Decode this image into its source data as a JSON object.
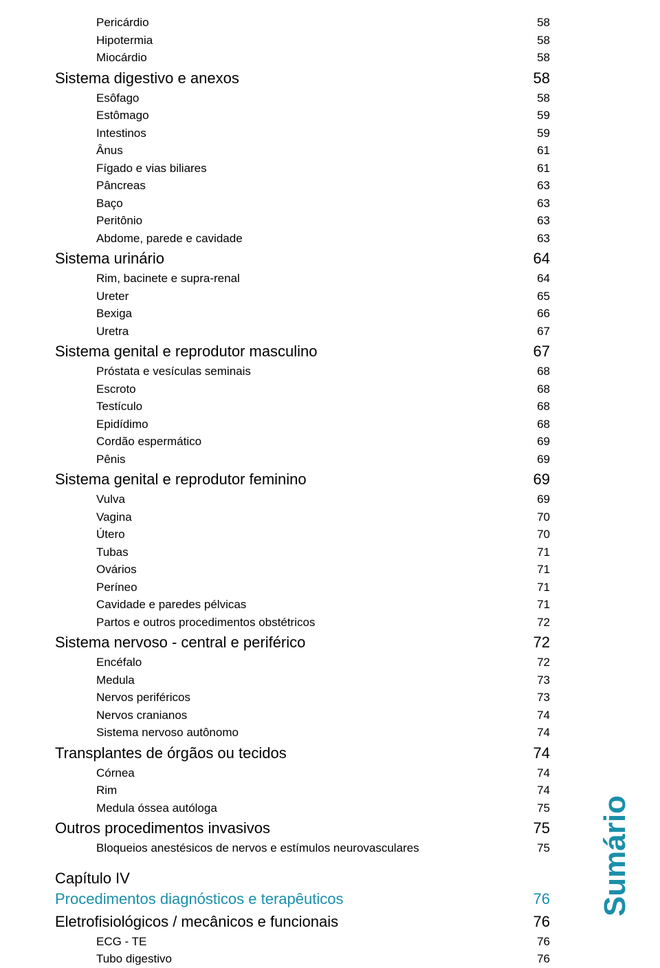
{
  "colors": {
    "text": "#000000",
    "accent": "#1a8faa",
    "background": "#ffffff"
  },
  "typography": {
    "section_fontsize": 22,
    "item_fontsize": 17,
    "side_fontsize": 44,
    "side_weight": 700
  },
  "side_label": "Sumário",
  "entries": [
    {
      "title": "Pericárdio",
      "page": "58",
      "level": 2,
      "type": "item"
    },
    {
      "title": "Hipotermia",
      "page": "58",
      "level": 2,
      "type": "item"
    },
    {
      "title": "Miocárdio",
      "page": "58",
      "level": 2,
      "type": "item"
    },
    {
      "title": "Sistema digestivo e anexos",
      "page": "58",
      "level": 1,
      "type": "section"
    },
    {
      "title": "Esôfago",
      "page": "58",
      "level": 2,
      "type": "item"
    },
    {
      "title": "Estômago",
      "page": "59",
      "level": 2,
      "type": "item"
    },
    {
      "title": "Intestinos",
      "page": "59",
      "level": 2,
      "type": "item"
    },
    {
      "title": "Ânus",
      "page": "61",
      "level": 2,
      "type": "item"
    },
    {
      "title": "Fígado e vias biliares",
      "page": "61",
      "level": 2,
      "type": "item"
    },
    {
      "title": "Pâncreas",
      "page": "63",
      "level": 2,
      "type": "item"
    },
    {
      "title": "Baço",
      "page": "63",
      "level": 2,
      "type": "item"
    },
    {
      "title": "Peritônio",
      "page": "63",
      "level": 2,
      "type": "item"
    },
    {
      "title": "Abdome, parede e cavidade",
      "page": "63",
      "level": 2,
      "type": "item"
    },
    {
      "title": "Sistema urinário",
      "page": "64",
      "level": 1,
      "type": "section"
    },
    {
      "title": "Rim, bacinete e supra-renal",
      "page": "64",
      "level": 2,
      "type": "item"
    },
    {
      "title": "Ureter",
      "page": "65",
      "level": 2,
      "type": "item"
    },
    {
      "title": "Bexiga",
      "page": "66",
      "level": 2,
      "type": "item"
    },
    {
      "title": "Uretra",
      "page": "67",
      "level": 2,
      "type": "item"
    },
    {
      "title": "Sistema genital e reprodutor masculino",
      "page": "67",
      "level": 1,
      "type": "section"
    },
    {
      "title": "Próstata e vesículas seminais",
      "page": "68",
      "level": 2,
      "type": "item"
    },
    {
      "title": "Escroto",
      "page": "68",
      "level": 2,
      "type": "item"
    },
    {
      "title": "Testículo",
      "page": "68",
      "level": 2,
      "type": "item"
    },
    {
      "title": "Epidídimo",
      "page": "68",
      "level": 2,
      "type": "item"
    },
    {
      "title": "Cordão espermático",
      "page": "69",
      "level": 2,
      "type": "item"
    },
    {
      "title": "Pênis",
      "page": "69",
      "level": 2,
      "type": "item"
    },
    {
      "title": "Sistema genital e reprodutor feminino",
      "page": "69",
      "level": 1,
      "type": "section"
    },
    {
      "title": "Vulva",
      "page": "69",
      "level": 2,
      "type": "item"
    },
    {
      "title": "Vagina",
      "page": "70",
      "level": 2,
      "type": "item"
    },
    {
      "title": "Útero",
      "page": "70",
      "level": 2,
      "type": "item"
    },
    {
      "title": "Tubas",
      "page": "71",
      "level": 2,
      "type": "item"
    },
    {
      "title": "Ovários",
      "page": "71",
      "level": 2,
      "type": "item"
    },
    {
      "title": "Períneo",
      "page": "71",
      "level": 2,
      "type": "item"
    },
    {
      "title": "Cavidade e paredes pélvicas",
      "page": "71",
      "level": 2,
      "type": "item"
    },
    {
      "title": "Partos e outros procedimentos obstétricos",
      "page": "72",
      "level": 2,
      "type": "item"
    },
    {
      "title": "Sistema nervoso - central e periférico",
      "page": "72",
      "level": 1,
      "type": "section"
    },
    {
      "title": "Encéfalo",
      "page": "72",
      "level": 2,
      "type": "item"
    },
    {
      "title": "Medula",
      "page": "73",
      "level": 2,
      "type": "item"
    },
    {
      "title": "Nervos periféricos",
      "page": "73",
      "level": 2,
      "type": "item"
    },
    {
      "title": "Nervos cranianos",
      "page": "74",
      "level": 2,
      "type": "item"
    },
    {
      "title": "Sistema nervoso autônomo",
      "page": "74",
      "level": 2,
      "type": "item"
    },
    {
      "title": "Transplantes de órgãos ou tecidos",
      "page": "74",
      "level": 1,
      "type": "section"
    },
    {
      "title": "Córnea",
      "page": "74",
      "level": 2,
      "type": "item"
    },
    {
      "title": "Rim",
      "page": "74",
      "level": 2,
      "type": "item"
    },
    {
      "title": "Medula óssea autóloga",
      "page": "75",
      "level": 2,
      "type": "item"
    },
    {
      "title": "Outros procedimentos invasivos",
      "page": "75",
      "level": 1,
      "type": "section"
    },
    {
      "title": "Bloqueios anestésicos de nervos e estímulos neurovasculares",
      "page": "75",
      "level": 2,
      "type": "item"
    },
    {
      "title": "Capítulo IV",
      "page": "",
      "level": 0,
      "type": "label"
    },
    {
      "title": "Procedimentos diagnósticos e terapêuticos",
      "page": "76",
      "level": 0,
      "type": "chapter"
    },
    {
      "title": "Eletrofisiológicos / mecânicos e funcionais",
      "page": "76",
      "level": 1,
      "type": "section"
    },
    {
      "title": "ECG - TE",
      "page": "76",
      "level": 2,
      "type": "item"
    },
    {
      "title": "Tubo digestivo",
      "page": "76",
      "level": 2,
      "type": "item"
    }
  ]
}
